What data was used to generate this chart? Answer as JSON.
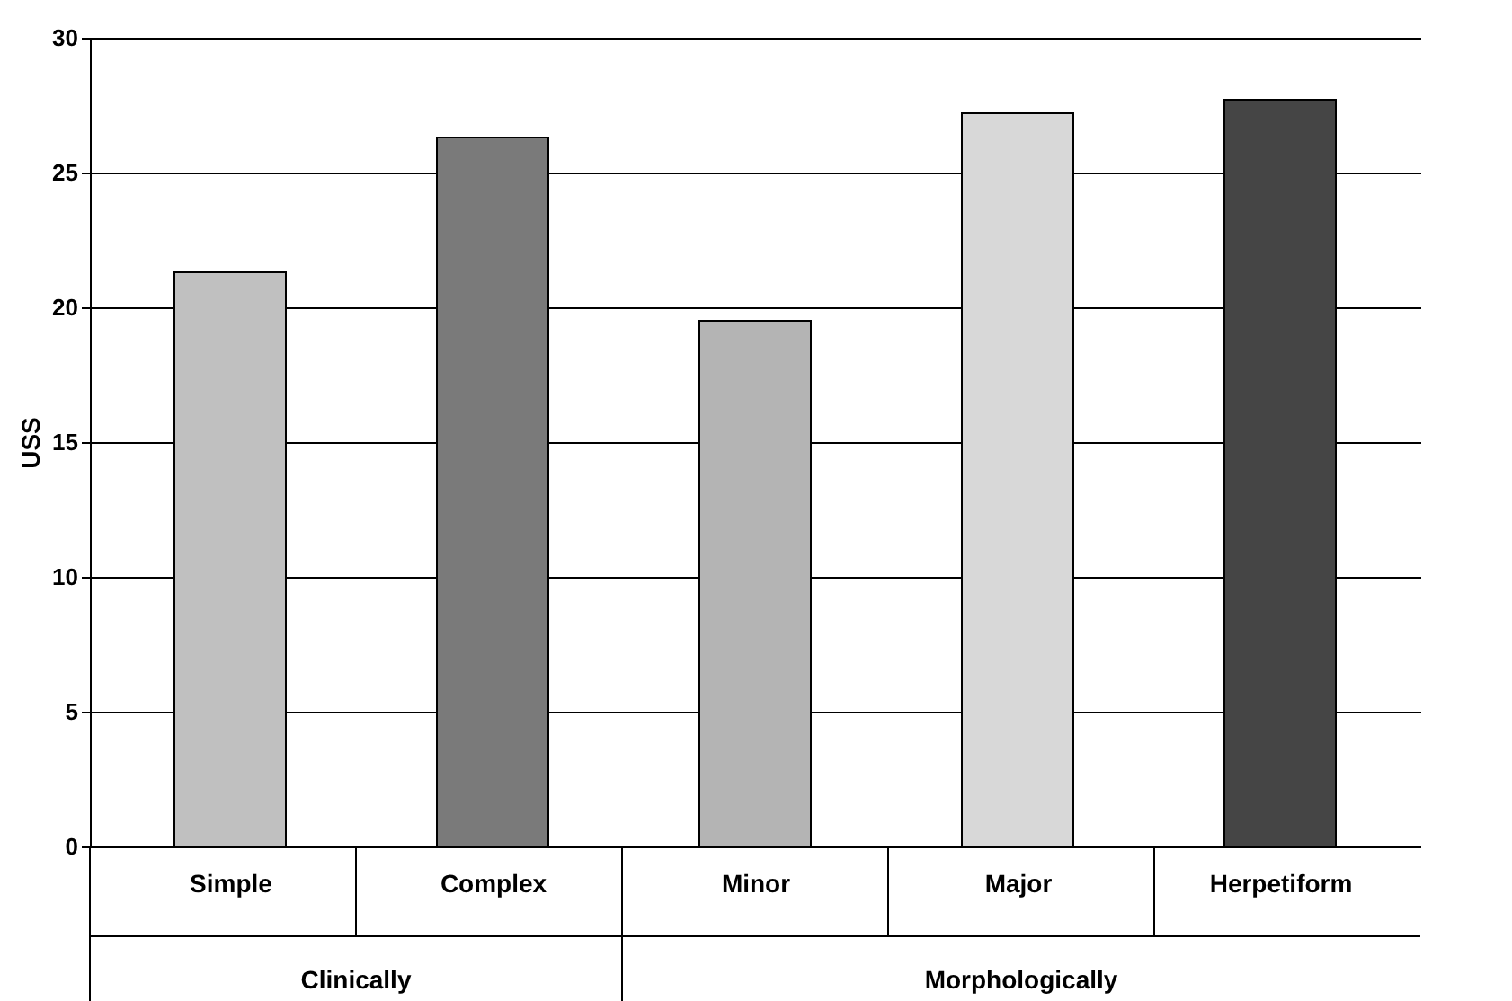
{
  "chart_data": {
    "type": "bar",
    "ylabel": "USS",
    "categories": [
      "Simple",
      "Complex",
      "Minor",
      "Major",
      "Herpetiform"
    ],
    "values": [
      21.3,
      26.3,
      19.5,
      27.2,
      27.7
    ],
    "colors": [
      "#c0c0c0",
      "#7a7a7a",
      "#b4b4b4",
      "#d8d8d8",
      "#454545"
    ],
    "ylim": [
      0,
      30
    ],
    "yticks": [
      0,
      5,
      10,
      15,
      20,
      25,
      30
    ],
    "grid": "y",
    "annotations": [
      "Clinically",
      "Morphologically"
    ]
  }
}
